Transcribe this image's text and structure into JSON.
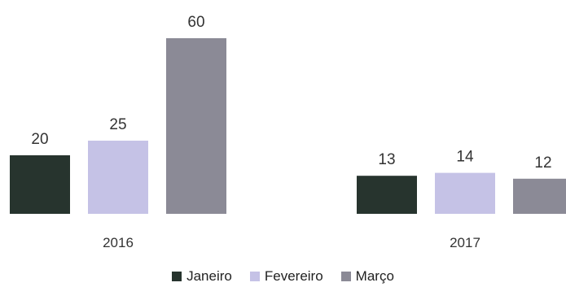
{
  "chart_data": {
    "type": "bar",
    "categories": [
      "2016",
      "2017"
    ],
    "series": [
      {
        "name": "Janeiro",
        "values": [
          20,
          13
        ],
        "color": "#27342e"
      },
      {
        "name": "Fevereiro",
        "values": [
          25,
          14
        ],
        "color": "#c5c2e6"
      },
      {
        "name": "Março",
        "values": [
          60,
          12
        ],
        "color": "#8b8a96"
      }
    ],
    "title": "",
    "xlabel": "",
    "ylabel": "",
    "ylim": [
      0,
      60
    ],
    "grid": false,
    "legend_position": "bottom"
  }
}
